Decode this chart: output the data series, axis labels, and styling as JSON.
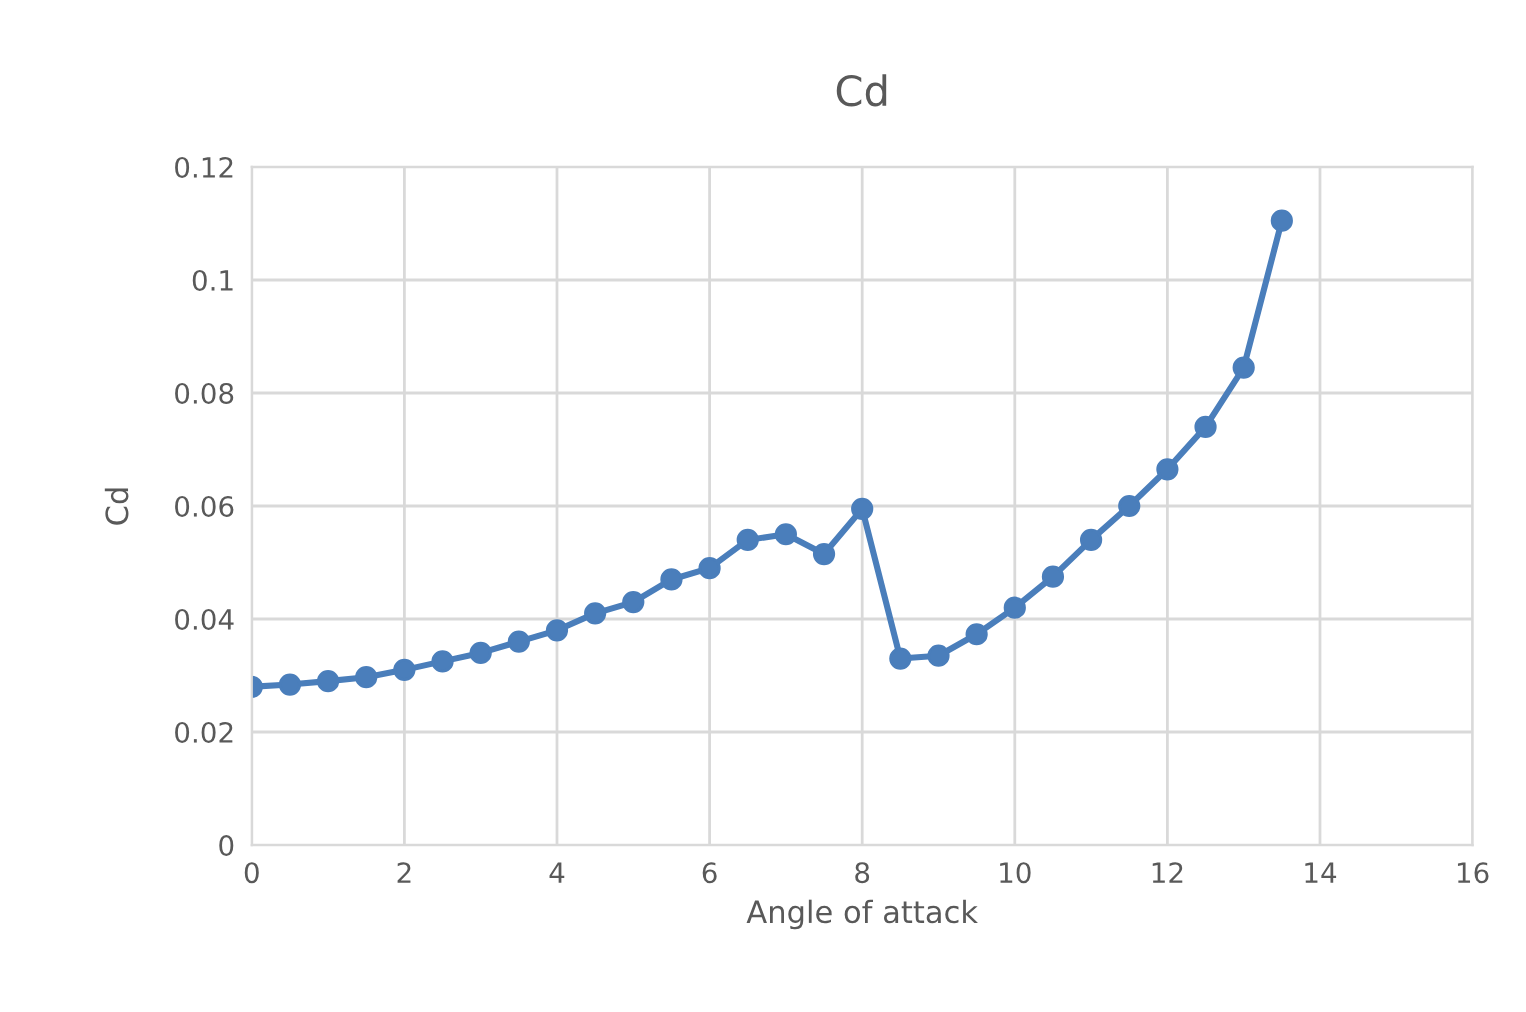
{
  "chart_data": {
    "type": "line",
    "title": "Cd",
    "xlabel": "Angle of attack",
    "ylabel": "Cd",
    "x": [
      0,
      0.5,
      1,
      1.5,
      2,
      2.5,
      3,
      3.5,
      4,
      4.5,
      5,
      5.5,
      6,
      6.5,
      7,
      7.5,
      8,
      8.5,
      9,
      9.5,
      10,
      10.5,
      11,
      11.5,
      12,
      12.5,
      13,
      13.5
    ],
    "series": [
      {
        "color": "#4a7ebb",
        "values": [
          0.028,
          0.0284,
          0.029,
          0.0297,
          0.031,
          0.0325,
          0.034,
          0.036,
          0.038,
          0.041,
          0.043,
          0.047,
          0.049,
          0.054,
          0.055,
          0.0515,
          0.0595,
          0.033,
          0.0335,
          0.0373,
          0.042,
          0.0475,
          0.054,
          0.06,
          0.0665,
          0.074,
          0.0845,
          0.1105
        ]
      }
    ],
    "xlim": [
      0,
      16
    ],
    "xticks": [
      0,
      2,
      4,
      6,
      8,
      10,
      12,
      14,
      16
    ],
    "ylim": [
      0,
      0.12
    ],
    "yticks": [
      0,
      0.02,
      0.04,
      0.06,
      0.08,
      0.1,
      0.12
    ],
    "grid": true,
    "marker": "circle",
    "line_style": "solid",
    "legend": false
  }
}
